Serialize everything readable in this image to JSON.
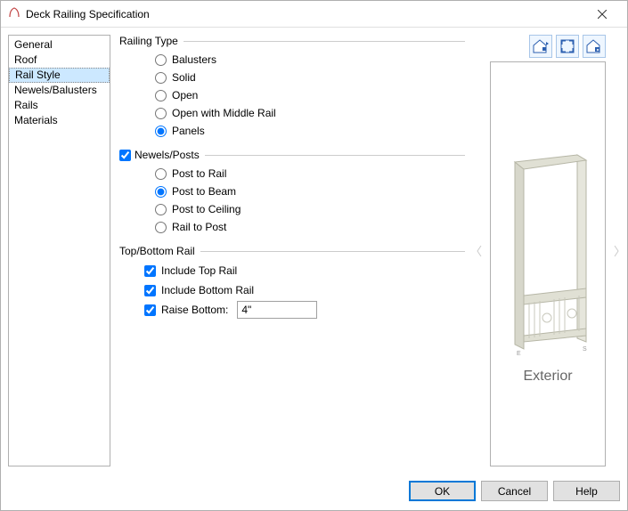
{
  "window": {
    "title": "Deck Railing Specification"
  },
  "sidebar": {
    "items": [
      "General",
      "Roof",
      "Rail Style",
      "Newels/Balusters",
      "Rails",
      "Materials"
    ],
    "selected": 2
  },
  "groups": {
    "railing_type": {
      "heading": "Railing Type",
      "options": [
        "Balusters",
        "Solid",
        "Open",
        "Open with Middle Rail",
        "Panels"
      ],
      "selected": 4
    },
    "newels_posts": {
      "heading": "Newels/Posts",
      "checked": true,
      "options": [
        "Post to Rail",
        "Post to Beam",
        "Post to Ceiling",
        "Rail to Post"
      ],
      "selected": 1
    },
    "top_bottom": {
      "heading": "Top/Bottom Rail",
      "include_top": {
        "label": "Include Top Rail",
        "checked": true
      },
      "include_bottom": {
        "label": "Include Bottom Rail",
        "checked": true
      },
      "raise_bottom": {
        "label": "Raise Bottom:",
        "checked": true,
        "value": "4\""
      }
    }
  },
  "preview": {
    "label": "Exterior",
    "post_color": "#d5d5c8",
    "rail_color": "#d5d5c8",
    "bg_color": "#ffffff"
  },
  "colors": {
    "selection_bg": "#cce8ff",
    "accent": "#0078d7",
    "button_bg": "#e1e1e1",
    "border": "#b0b0b0"
  },
  "buttons": {
    "ok": "OK",
    "cancel": "Cancel",
    "help": "Help"
  }
}
